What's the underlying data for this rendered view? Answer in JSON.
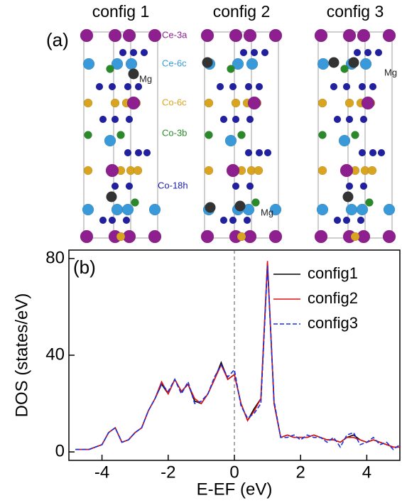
{
  "structure": {
    "panel_label": "(a)",
    "configs": [
      "config 1",
      "config 2",
      "config 3"
    ],
    "site_labels": [
      "Ce-3a",
      "Ce-6c",
      "Co-6c",
      "Co-3b",
      "Co-18h"
    ],
    "mg_labels": [
      "Mg",
      "Mg",
      "Mg"
    ]
  },
  "chart_data": {
    "type": "line",
    "panel_label": "(b)",
    "x_label": "E-EF (eV)",
    "y_label": "DOS (states/eV)",
    "xlim": [
      -5,
      5
    ],
    "ylim": [
      -3.5,
      83.5
    ],
    "xticks": [
      -4,
      -2,
      0,
      2,
      4
    ],
    "yticks": [
      0,
      40,
      80
    ],
    "legend": "upper right",
    "x": [
      -4.8,
      -4.6,
      -4.4,
      -4.2,
      -4.0,
      -3.8,
      -3.6,
      -3.4,
      -3.2,
      -3.0,
      -2.8,
      -2.6,
      -2.4,
      -2.2,
      -2.0,
      -1.8,
      -1.6,
      -1.4,
      -1.2,
      -1.0,
      -0.8,
      -0.6,
      -0.4,
      -0.2,
      0.0,
      0.2,
      0.4,
      0.6,
      0.8,
      1.0,
      1.2,
      1.4,
      1.6,
      1.8,
      2.0,
      2.2,
      2.4,
      2.6,
      2.8,
      3.0,
      3.2,
      3.4,
      3.6,
      3.8,
      4.0,
      4.2,
      4.4,
      4.6,
      4.8,
      5.0
    ],
    "series": [
      {
        "name": "config1",
        "color": "#000000",
        "dash": false,
        "values": [
          1,
          1,
          1,
          2,
          3,
          8,
          10,
          4,
          5,
          8,
          10,
          17,
          22,
          28,
          24,
          30,
          25,
          28,
          21,
          20,
          24,
          30,
          37,
          30,
          32,
          20,
          13,
          18,
          22,
          78,
          20,
          6,
          7,
          6,
          6,
          6,
          7,
          6,
          5,
          5,
          4,
          6,
          7,
          5,
          4,
          5,
          4,
          3,
          2,
          2
        ]
      },
      {
        "name": "config2",
        "color": "#e01010",
        "dash": false,
        "values": [
          1,
          1,
          1,
          2,
          3,
          8,
          10,
          4,
          5,
          8,
          10,
          17,
          22,
          29,
          24,
          30,
          25,
          28,
          22,
          20,
          24,
          30,
          36,
          30,
          32,
          20,
          13,
          17,
          22,
          79,
          20,
          6,
          7,
          6,
          6,
          6,
          7,
          6,
          5,
          5,
          4,
          6,
          6,
          5,
          4,
          5,
          4,
          3,
          2,
          2
        ]
      },
      {
        "name": "config3",
        "color": "#1a2ee0",
        "dash": true,
        "values": [
          1,
          1,
          1,
          2,
          3,
          8,
          10,
          4,
          5,
          8,
          10,
          17,
          22,
          28,
          25,
          30,
          24,
          29,
          20,
          21,
          24,
          31,
          36,
          31,
          34,
          19,
          14,
          16,
          20,
          77,
          21,
          6,
          6,
          7,
          5,
          7,
          6,
          6,
          4,
          6,
          2,
          7,
          8,
          3,
          4,
          6,
          3,
          4,
          1,
          3
        ]
      }
    ]
  }
}
